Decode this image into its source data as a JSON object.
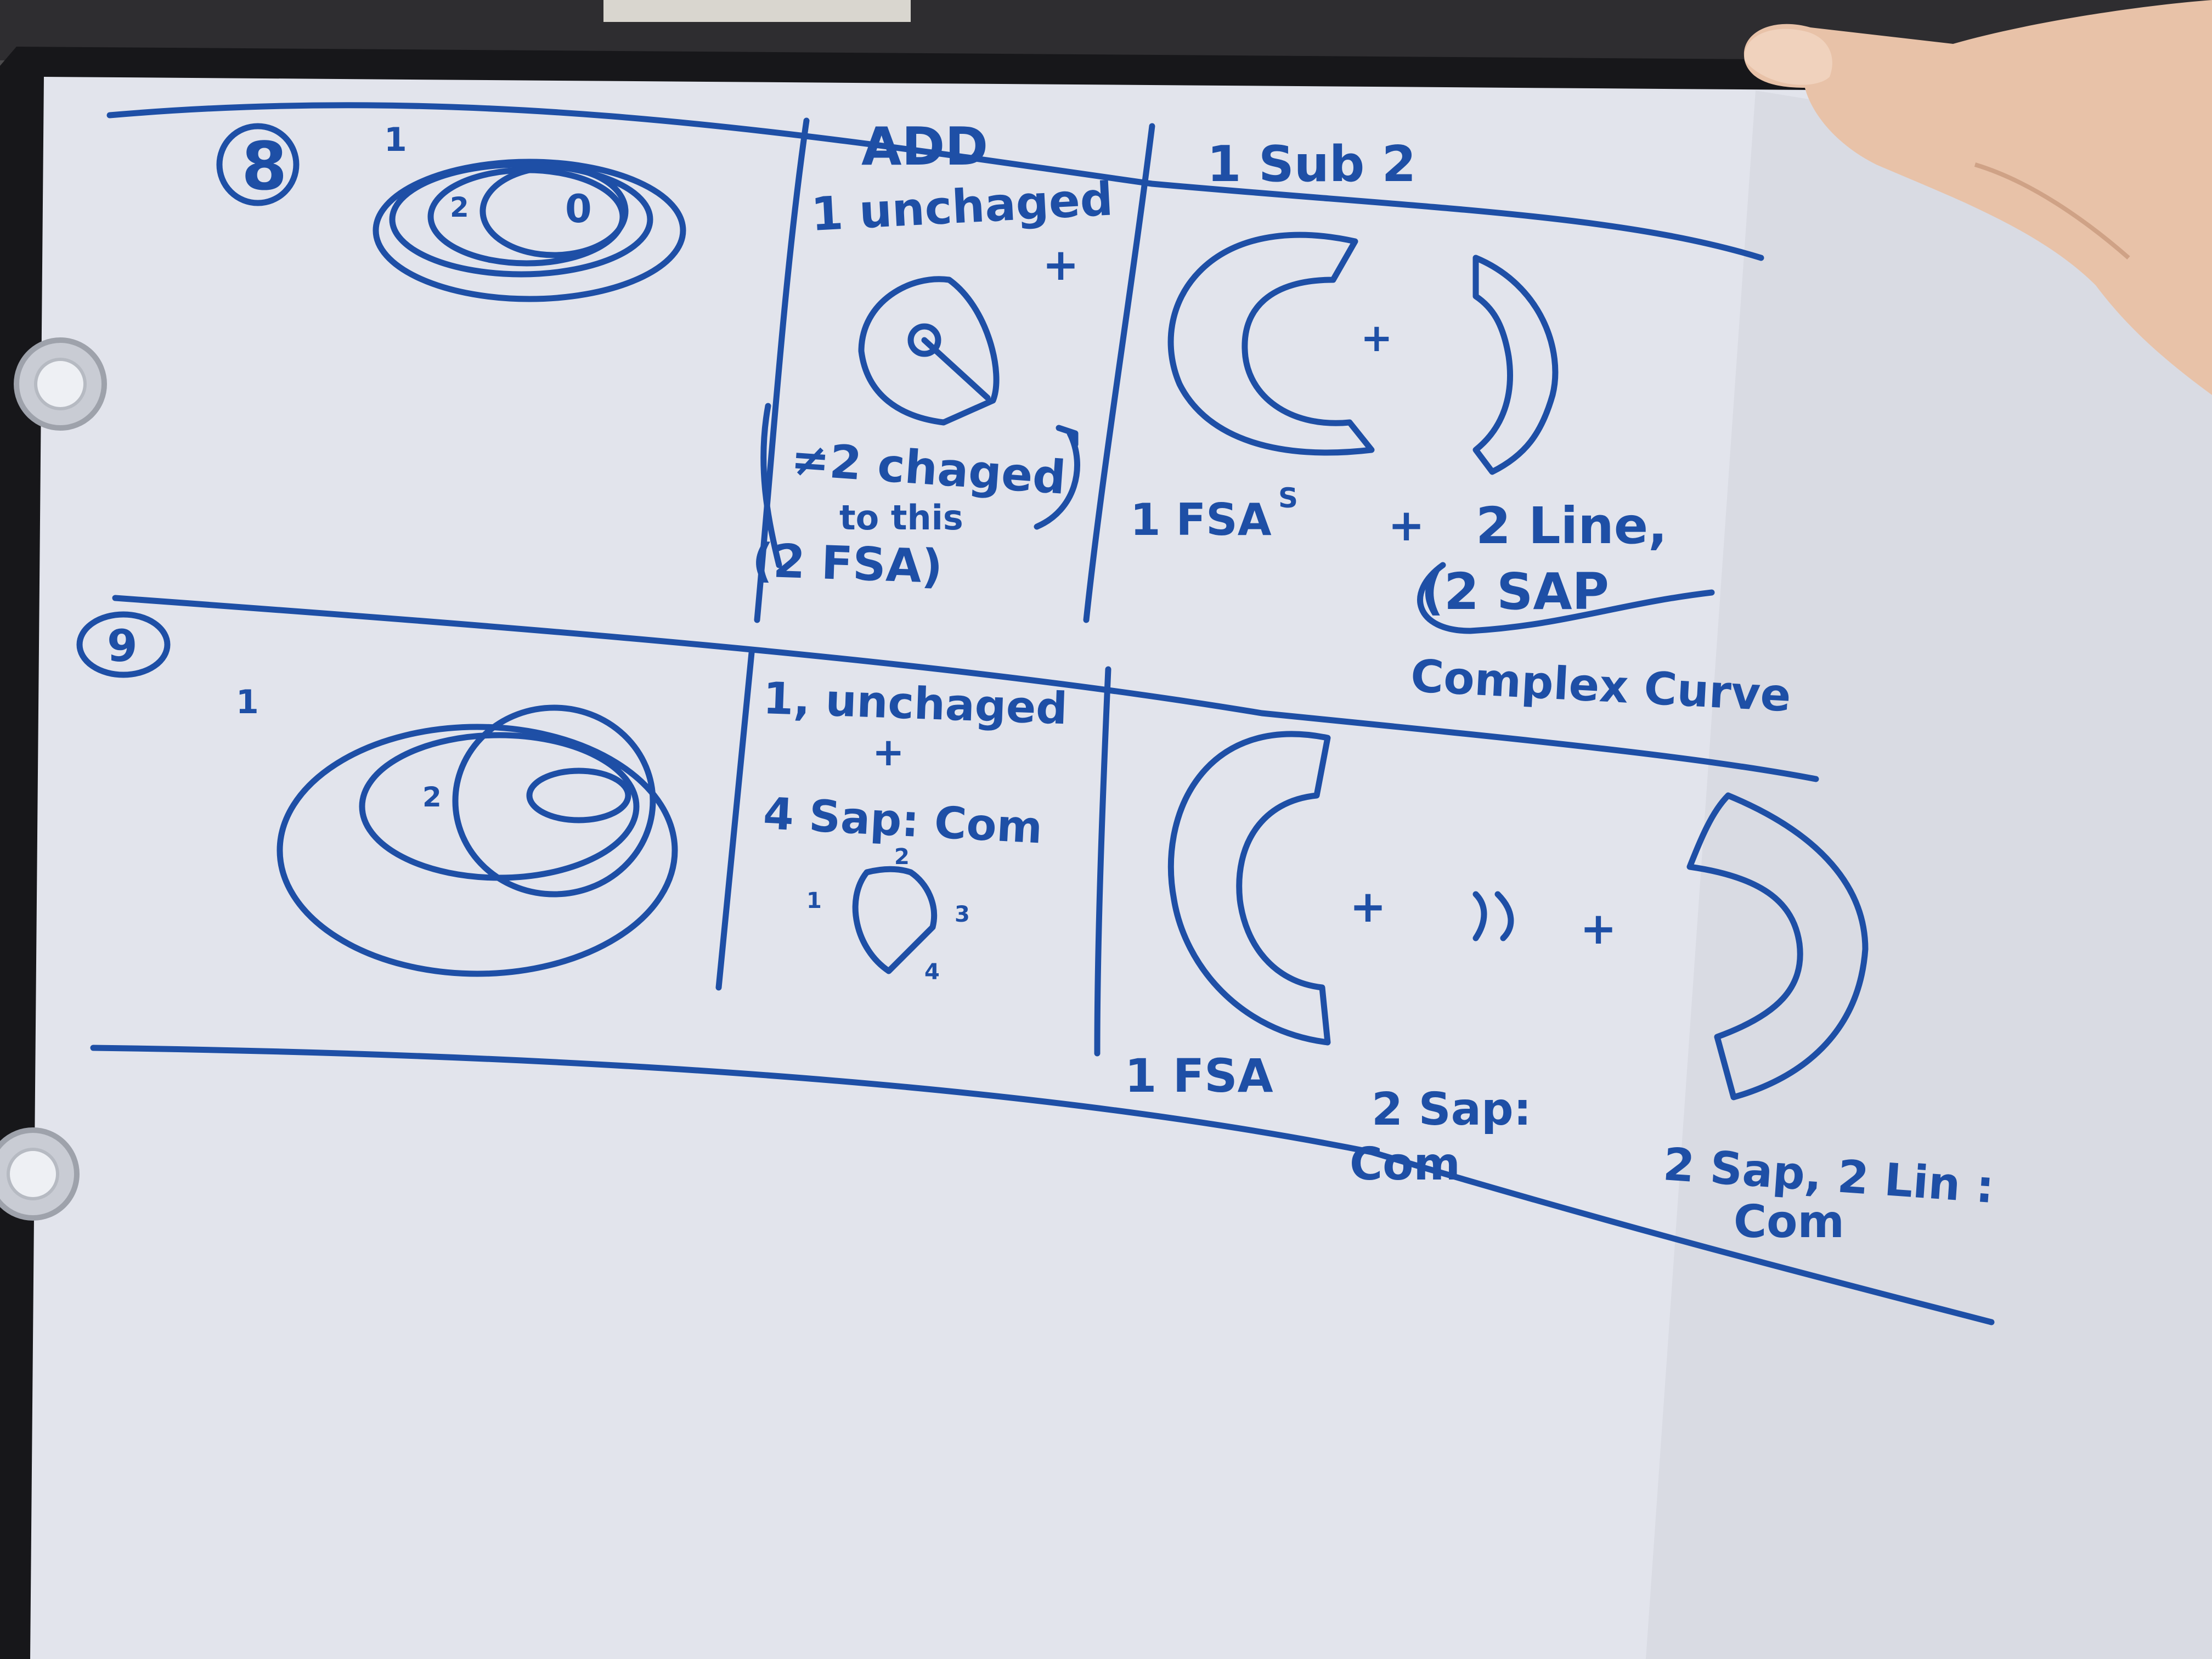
{
  "ink_color": "#1e4fa6",
  "board_color": "#e2e4ec",
  "frame_color": "#17171a",
  "wall_color": "#4b4a4c",
  "row8": {
    "number": "8",
    "onion_labels": [
      "1",
      "2",
      "0"
    ],
    "add_header": "ADD",
    "add_line1": "1 unchaged",
    "add_plus": "+",
    "add_changed": "≠2 chaged",
    "add_changed_to": "to this",
    "add_fsa": "(2 FSA)",
    "sub_header": "1 Sub 2",
    "sub_plus": "+",
    "sub_fsa": "1 FSA",
    "sub_fsa_mark": "S",
    "sub_line_plus": "+",
    "sub_line": "2 Line,",
    "sub_sap": "(2 SAP",
    "sub_complex": "Complex Curve"
  },
  "row9": {
    "number": "9",
    "onion_labels": [
      "1",
      "2"
    ],
    "add_line1": "1, unchaged",
    "add_plus": "+",
    "add_sap": "4 Sap: Com",
    "small_labels": [
      "1",
      "2",
      "3",
      "4"
    ],
    "sub_plus1": "+",
    "sub_plus2": "+",
    "sub_fsa": "1 FSA",
    "sub_sap_a": "2 Sap:",
    "sub_com_a": "Com",
    "sub_sap_b": "2 Sap, 2 Lin :",
    "sub_com_b": "Com"
  }
}
